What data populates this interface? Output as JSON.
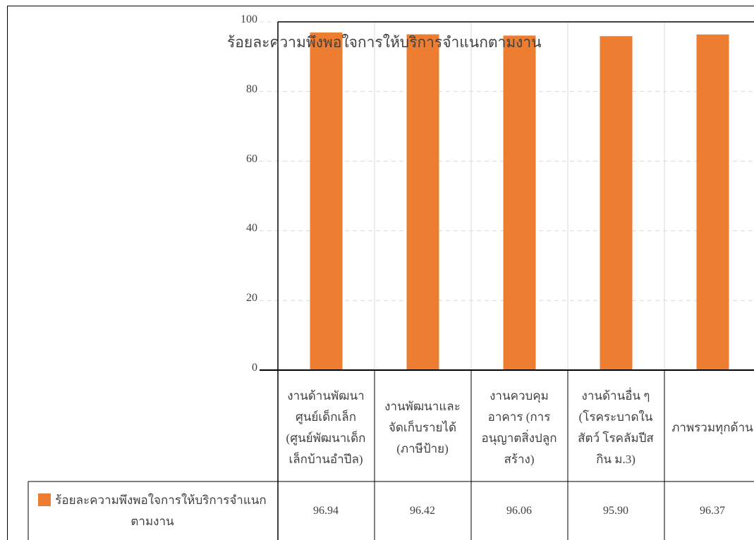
{
  "chart_data": {
    "type": "bar",
    "title": "ร้อยละความพึงพอใจการให้บริการจำแนกตามงาน",
    "categories": [
      [
        "งานด้านพัฒนา",
        "ศูนย์เด็กเล็ก",
        "(ศูนย์พัฒนาเด็ก",
        "เล็กบ้านอำปึล)"
      ],
      [
        "งานพัฒนาและ",
        "จัดเก็บรายได้",
        "(ภาษีป้าย)"
      ],
      [
        "งานควบคุม",
        "อาคาร (การ",
        "อนุญาตสิ่งปลูก",
        "สร้าง)"
      ],
      [
        "งานด้านอื่น ๆ",
        "(โรคระบาดใน",
        "สัตว์ โรคลัมปีส",
        "กิน ม.3)"
      ],
      [
        "ภาพรวมทุกด้าน"
      ]
    ],
    "series": [
      {
        "name": "ร้อยละความพึงพอใจการให้บริการจำแนกตามงาน",
        "values": [
          96.94,
          96.42,
          96.06,
          95.9,
          96.37
        ],
        "value_labels": [
          "96.94",
          "96.42",
          "96.06",
          "95.90",
          "96.37"
        ],
        "color": "#ED7D31"
      }
    ],
    "yticks": [
      "0",
      "20",
      "40",
      "60",
      "80",
      "100"
    ],
    "ylim": [
      0,
      100
    ],
    "grid": true,
    "legend": "data-table"
  }
}
